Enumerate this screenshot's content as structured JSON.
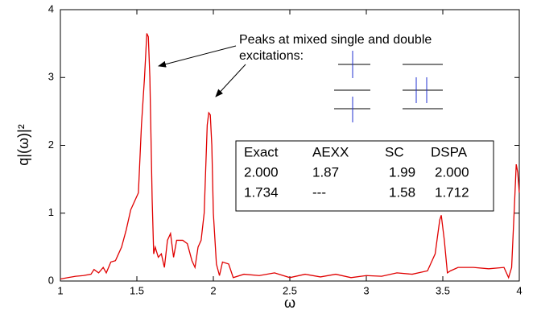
{
  "chart_data": {
    "type": "line",
    "xlabel": "ω",
    "ylabel": "q|(ω)|²",
    "color": "#e00000",
    "xlim": [
      1,
      4
    ],
    "ylim": [
      0,
      4
    ],
    "xticks": [
      1,
      1.5,
      2,
      2.5,
      3,
      3.5,
      4
    ],
    "yticks": [
      0,
      1,
      2,
      3,
      4
    ],
    "x": [
      1.0,
      1.05,
      1.1,
      1.15,
      1.2,
      1.22,
      1.25,
      1.28,
      1.3,
      1.33,
      1.36,
      1.38,
      1.4,
      1.43,
      1.46,
      1.49,
      1.51,
      1.53,
      1.55,
      1.565,
      1.575,
      1.585,
      1.6,
      1.61,
      1.62,
      1.64,
      1.66,
      1.68,
      1.7,
      1.72,
      1.74,
      1.76,
      1.8,
      1.83,
      1.86,
      1.88,
      1.9,
      1.92,
      1.94,
      1.96,
      1.97,
      1.98,
      1.99,
      2.0,
      2.02,
      2.04,
      2.06,
      2.1,
      2.13,
      2.2,
      2.3,
      2.4,
      2.5,
      2.6,
      2.7,
      2.8,
      2.9,
      3.0,
      3.1,
      3.2,
      3.3,
      3.4,
      3.45,
      3.48,
      3.49,
      3.51,
      3.53,
      3.55,
      3.6,
      3.7,
      3.8,
      3.9,
      3.93,
      3.95,
      3.97,
      3.98,
      3.99,
      4.0
    ],
    "values": [
      0.03,
      0.05,
      0.07,
      0.08,
      0.1,
      0.17,
      0.12,
      0.2,
      0.12,
      0.28,
      0.3,
      0.4,
      0.5,
      0.75,
      1.05,
      1.2,
      1.3,
      2.3,
      3.0,
      3.65,
      3.6,
      3.0,
      1.2,
      0.4,
      0.5,
      0.35,
      0.4,
      0.2,
      0.6,
      0.7,
      0.35,
      0.6,
      0.6,
      0.55,
      0.3,
      0.2,
      0.5,
      0.6,
      1.0,
      2.3,
      2.48,
      2.45,
      2.0,
      1.0,
      0.25,
      0.08,
      0.28,
      0.25,
      0.05,
      0.1,
      0.08,
      0.12,
      0.05,
      0.1,
      0.06,
      0.1,
      0.05,
      0.08,
      0.07,
      0.12,
      0.1,
      0.15,
      0.4,
      0.9,
      0.97,
      0.6,
      0.12,
      0.15,
      0.2,
      0.2,
      0.18,
      0.2,
      0.05,
      0.2,
      1.2,
      1.72,
      1.6,
      1.3
    ],
    "annotation": [
      "Peaks at mixed single and double",
      "excitations:"
    ],
    "inset_table": {
      "columns": [
        "Exact",
        "AEXX",
        "SC",
        "DSPA"
      ],
      "rows": [
        [
          "2.000",
          "1.87",
          "1.99",
          "2.000"
        ],
        [
          "1.734",
          "---",
          "1.58",
          "1.712"
        ]
      ]
    }
  }
}
